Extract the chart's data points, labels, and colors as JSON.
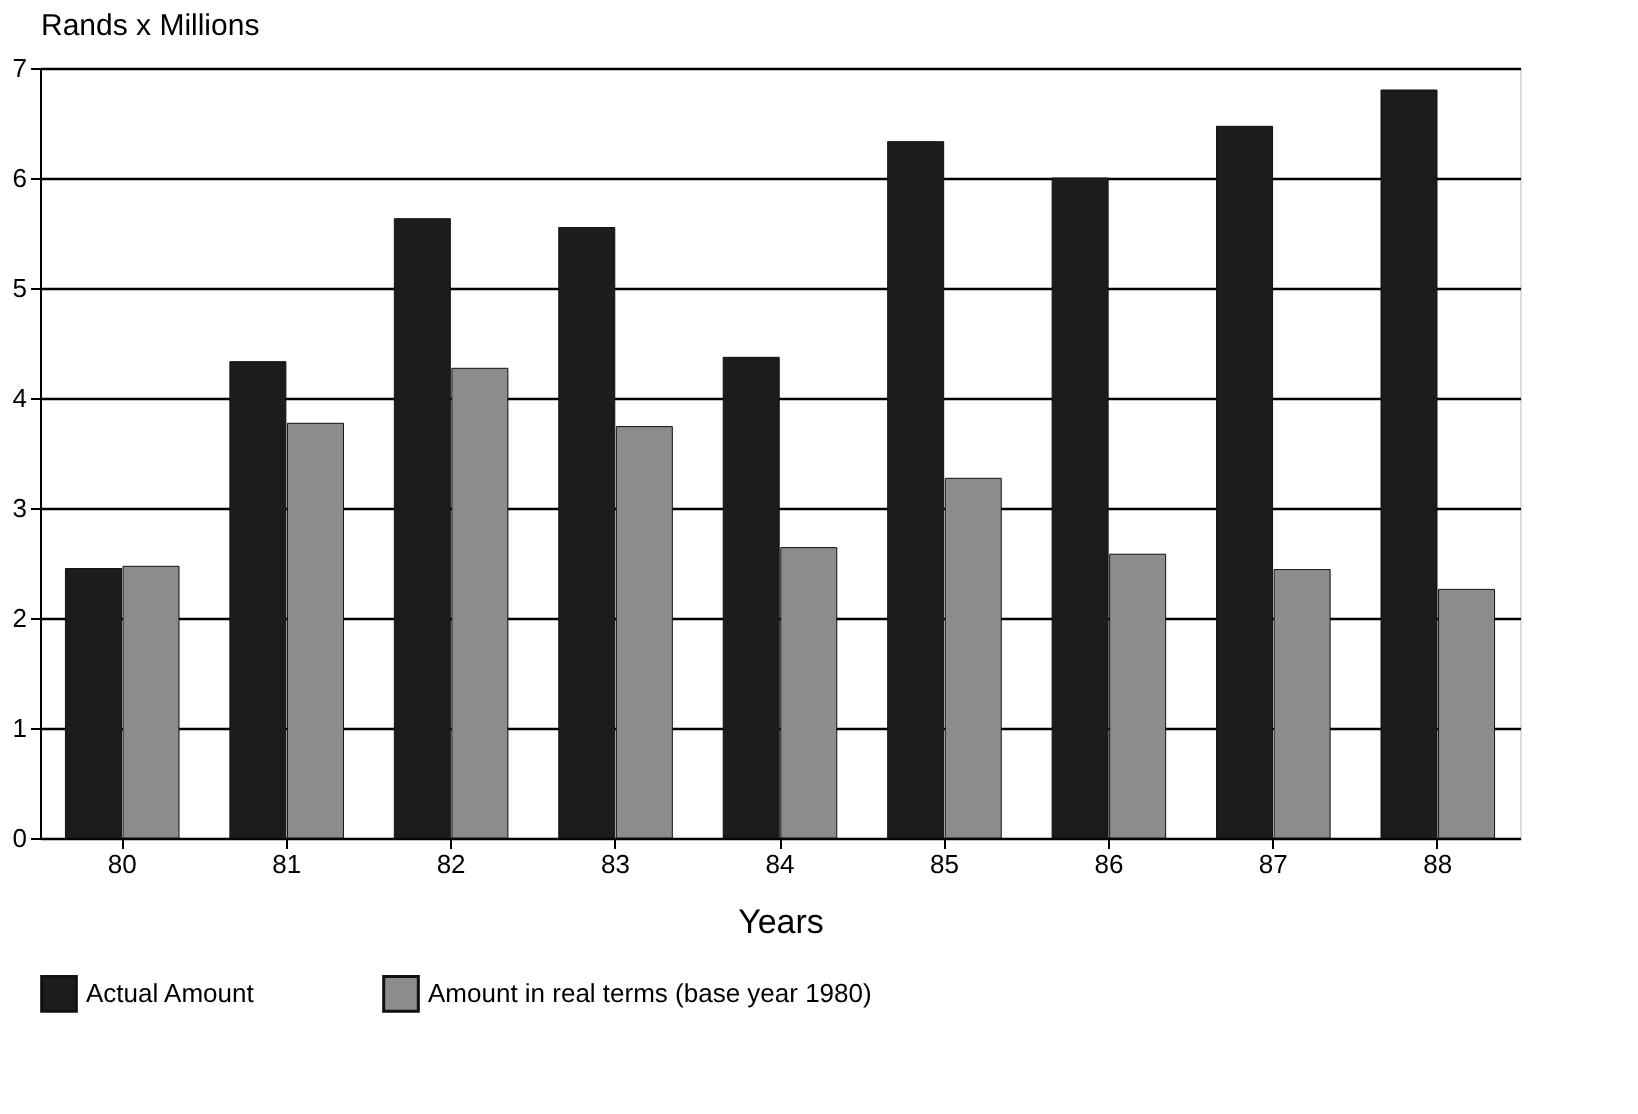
{
  "chart_data": {
    "type": "bar",
    "ylabel": "Rands x Millions",
    "xlabel": "Years",
    "categories": [
      "80",
      "81",
      "82",
      "83",
      "84",
      "85",
      "86",
      "87",
      "88"
    ],
    "series": [
      {
        "name": "Actual Amount",
        "color": "#1c1c1c",
        "values": [
          2.45,
          4.33,
          5.63,
          5.55,
          4.37,
          6.33,
          6.0,
          6.47,
          6.8
        ]
      },
      {
        "name": "Amount in real terms (base year 1980)",
        "color": "#8c8c8c",
        "values": [
          2.47,
          3.77,
          4.27,
          3.74,
          2.64,
          3.27,
          2.58,
          2.44,
          2.26
        ]
      }
    ],
    "ylim": [
      0,
      7
    ],
    "yticks": [
      0,
      1,
      2,
      3,
      4,
      5,
      6,
      7
    ],
    "grid": "y",
    "legend": "bottom"
  }
}
